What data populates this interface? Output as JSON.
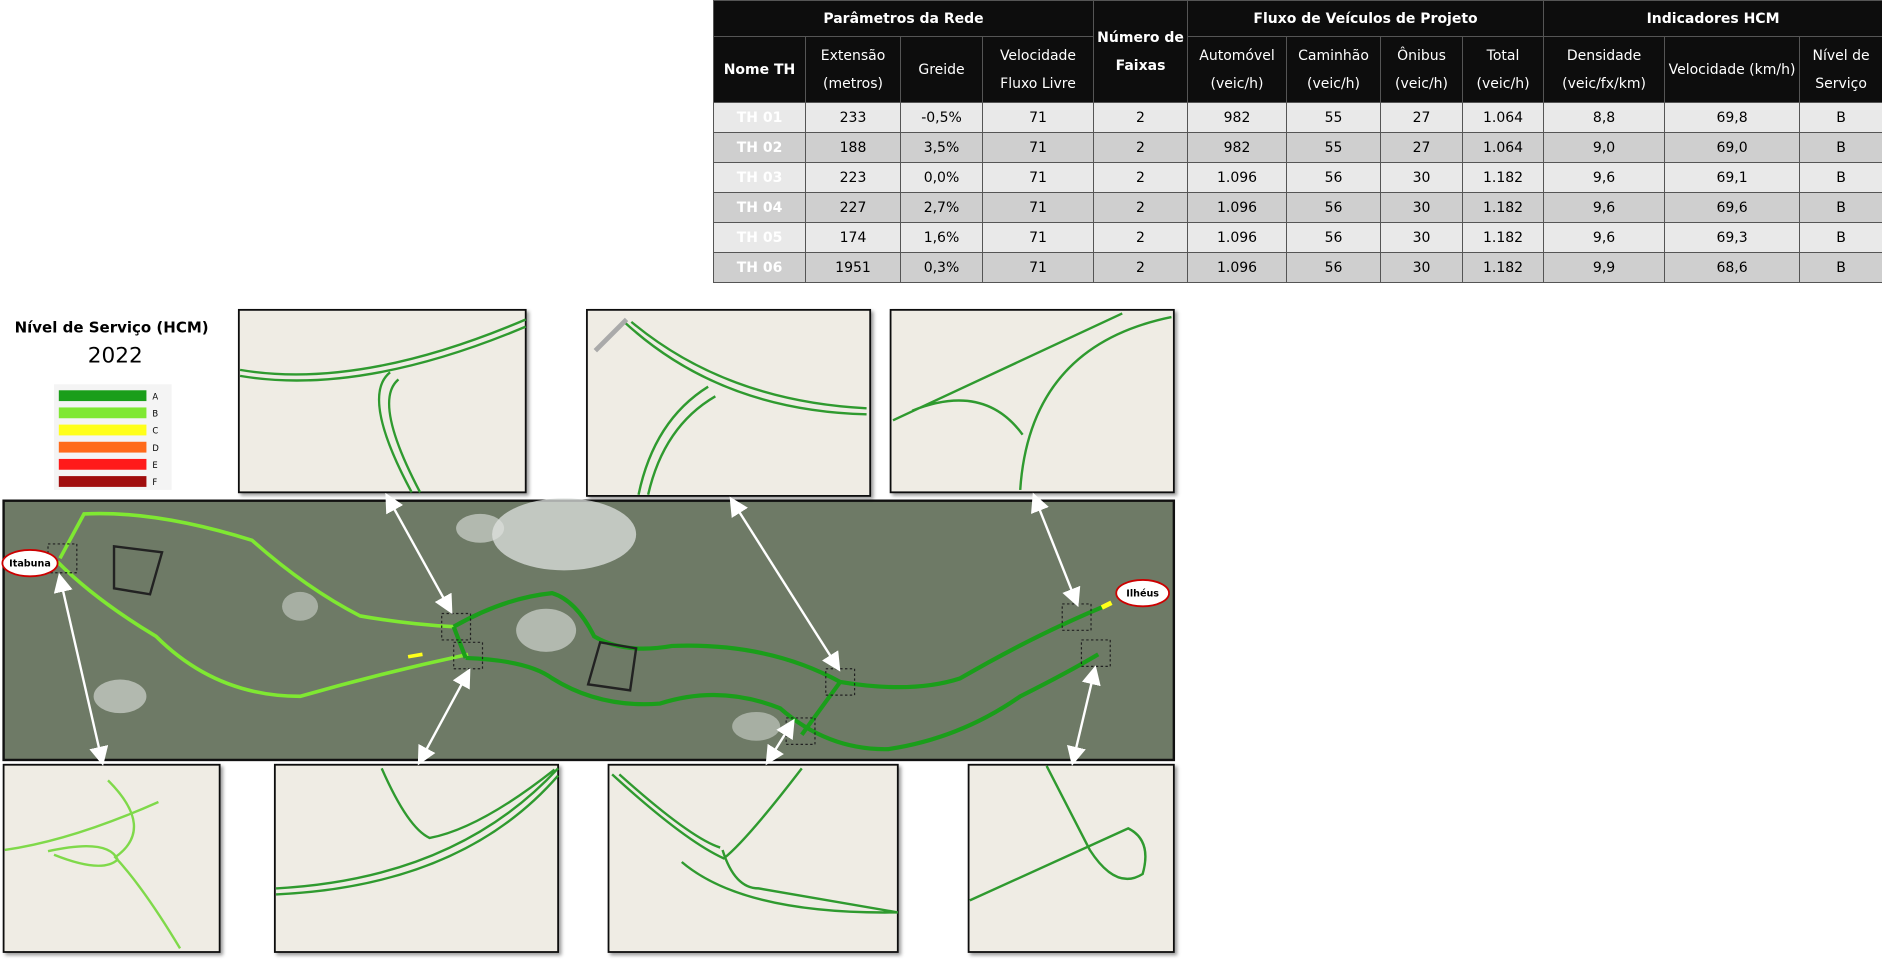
{
  "table": {
    "group_headers": [
      "Parâmetros da Rede",
      "Número de Faixas",
      "Fluxo de Veículos de Projeto",
      "Indicadores HCM"
    ],
    "columns": [
      "Nome TH",
      "Extensão (metros)",
      "Greide",
      "Velocidade Fluxo Livre",
      "Automóvel (veic/h)",
      "Caminhão (veic/h)",
      "Ônibus (veic/h)",
      "Total (veic/h)",
      "Densidade (veic/fx/km)",
      "Velocidade (km/h)",
      "Nível de Serviço"
    ],
    "rows": [
      [
        "TH 01",
        "233",
        "-0,5%",
        "71",
        "2",
        "982",
        "55",
        "27",
        "1.064",
        "8,8",
        "69,8",
        "B"
      ],
      [
        "TH 02",
        "188",
        "3,5%",
        "71",
        "2",
        "982",
        "55",
        "27",
        "1.064",
        "9,0",
        "69,0",
        "B"
      ],
      [
        "TH 03",
        "223",
        "0,0%",
        "71",
        "2",
        "1.096",
        "56",
        "30",
        "1.182",
        "9,6",
        "69,1",
        "B"
      ],
      [
        "TH 04",
        "227",
        "2,7%",
        "71",
        "2",
        "1.096",
        "56",
        "30",
        "1.182",
        "9,6",
        "69,6",
        "B"
      ],
      [
        "TH 05",
        "174",
        "1,6%",
        "71",
        "2",
        "1.096",
        "56",
        "30",
        "1.182",
        "9,6",
        "69,3",
        "B"
      ],
      [
        "TH 06",
        "1951",
        "0,3%",
        "71",
        "2",
        "1.096",
        "56",
        "30",
        "1.182",
        "9,9",
        "68,6",
        "B"
      ]
    ]
  },
  "legend": {
    "title": "Nível de Serviço (HCM)",
    "year": "2022",
    "levels": [
      {
        "label": "A",
        "color": "#1a9e1a"
      },
      {
        "label": "B",
        "color": "#7fe832"
      },
      {
        "label": "C",
        "color": "#ffff1a"
      },
      {
        "label": "D",
        "color": "#ff6a1a"
      },
      {
        "label": "E",
        "color": "#ff1a1a"
      },
      {
        "label": "F",
        "color": "#a00d0d"
      }
    ]
  },
  "map": {
    "labels": [
      "Itabuna",
      "Ilhéus"
    ]
  }
}
